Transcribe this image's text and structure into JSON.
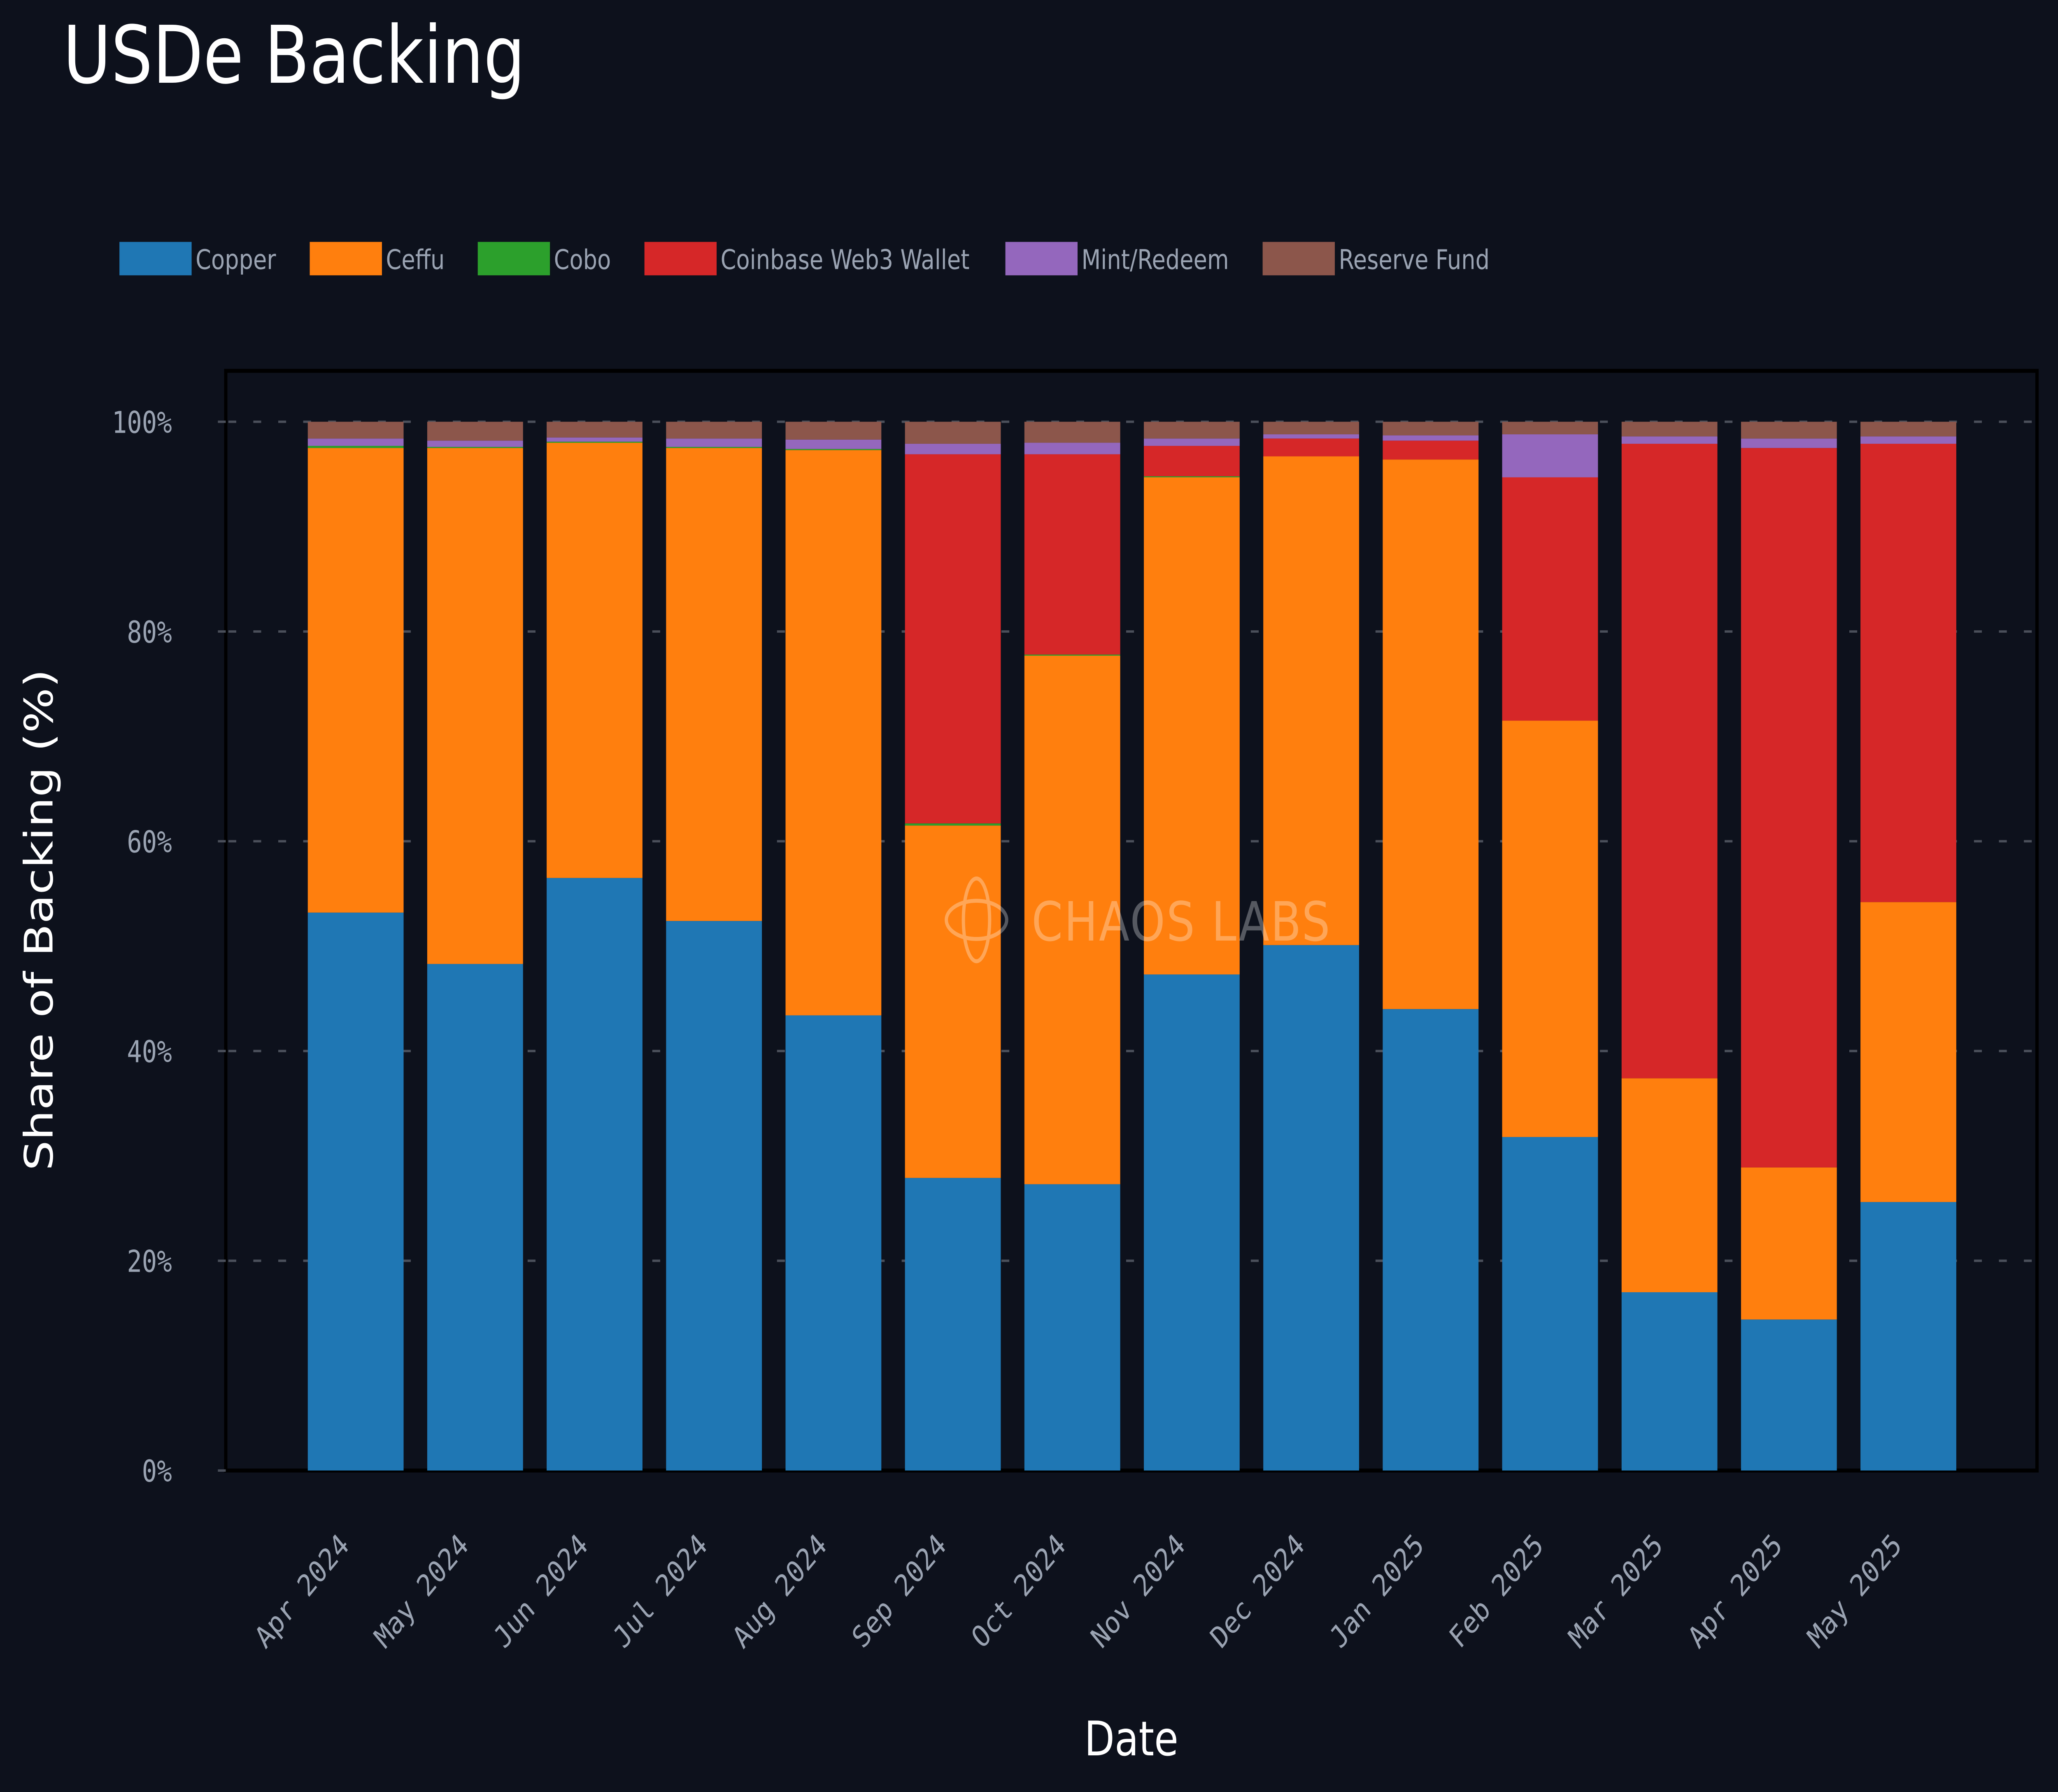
{
  "chart_data": {
    "type": "bar",
    "stacked": true,
    "title": "USDe Backing",
    "xlabel": "Date",
    "ylabel": "Share of Backing (%)",
    "ylim": [
      0,
      100
    ],
    "yticks": [
      0,
      20,
      40,
      60,
      80,
      100
    ],
    "ytick_labels": [
      "0%",
      "20%",
      "40%",
      "60%",
      "80%",
      "100%"
    ],
    "grid": "horizontal dashed",
    "legend_position": "top",
    "watermark": "CHAOS LABS",
    "categories": [
      "Apr 2024",
      "May 2024",
      "Jun 2024",
      "Jul 2024",
      "Aug 2024",
      "Sep 2024",
      "Oct 2024",
      "Nov 2024",
      "Dec 2024",
      "Jan 2025",
      "Feb 2025",
      "Mar 2025",
      "Apr 2025",
      "May 2025"
    ],
    "series": [
      {
        "name": "Copper",
        "color": "#1f77b4",
        "values": [
          53.2,
          48.3,
          56.5,
          52.4,
          43.4,
          27.9,
          27.3,
          47.3,
          50.1,
          44.0,
          31.8,
          17.0,
          14.4,
          25.6
        ]
      },
      {
        "name": "Ceffu",
        "color": "#ff7f0e",
        "values": [
          44.3,
          49.2,
          41.5,
          45.1,
          53.9,
          33.6,
          50.4,
          47.4,
          46.6,
          52.4,
          39.7,
          20.4,
          14.5,
          28.6
        ]
      },
      {
        "name": "Cobo",
        "color": "#2ca02c",
        "values": [
          0.2,
          0.1,
          0.1,
          0.1,
          0.1,
          0.2,
          0.1,
          0.1,
          0.0,
          0.0,
          0.0,
          0.0,
          0.0,
          0.0
        ]
      },
      {
        "name": "Coinbase Web3 Wallet",
        "color": "#d62728",
        "values": [
          0.0,
          0.0,
          0.0,
          0.0,
          0.0,
          35.2,
          19.1,
          2.9,
          1.7,
          1.8,
          23.2,
          60.5,
          68.6,
          43.7
        ]
      },
      {
        "name": "Mint/Redeem",
        "color": "#9467bd",
        "values": [
          0.7,
          0.6,
          0.4,
          0.8,
          0.9,
          1.0,
          1.1,
          0.7,
          0.4,
          0.5,
          4.1,
          0.7,
          0.9,
          0.7
        ]
      },
      {
        "name": "Reserve Fund",
        "color": "#8c564b",
        "values": [
          1.6,
          1.8,
          1.5,
          1.6,
          1.7,
          2.1,
          2.0,
          1.6,
          1.2,
          1.3,
          1.2,
          1.4,
          1.6,
          1.4
        ]
      }
    ]
  }
}
